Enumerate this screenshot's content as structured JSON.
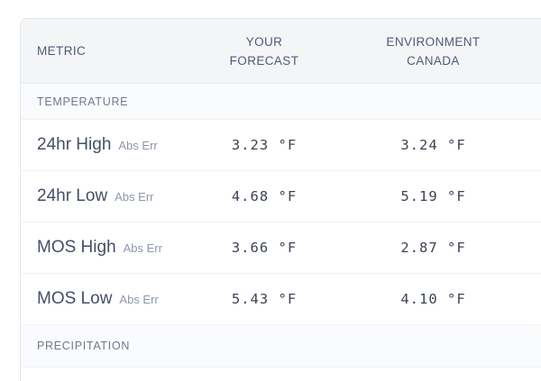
{
  "table": {
    "columns": [
      {
        "label": "METRIC"
      },
      {
        "label": "YOUR\nFORECAST"
      },
      {
        "label": "ENVIRONMENT\nCANADA"
      }
    ],
    "sections": [
      {
        "label": "TEMPERATURE",
        "rows": [
          {
            "metric": "24hr High",
            "qualifier": "Abs Err",
            "your_forecast": "3.23 °F",
            "environment_canada": "3.24 °F"
          },
          {
            "metric": "24hr Low",
            "qualifier": "Abs Err",
            "your_forecast": "4.68 °F",
            "environment_canada": "5.19 °F"
          },
          {
            "metric": "MOS High",
            "qualifier": "Abs Err",
            "your_forecast": "3.66 °F",
            "environment_canada": "2.87 °F"
          },
          {
            "metric": "MOS Low",
            "qualifier": "Abs Err",
            "your_forecast": "5.43 °F",
            "environment_canada": "4.10 °F"
          }
        ]
      },
      {
        "label": "PRECIPITATION",
        "rows": []
      }
    ]
  },
  "colors": {
    "header_background": "#f3f5f7",
    "section_background": "#fafbfd",
    "card_border": "#e3e6eb",
    "row_divider": "#eff1f5",
    "header_text": "#4f5b76",
    "section_text": "#6f7a8d",
    "metric_text": "#454f66",
    "qualifier_text": "#8d97ab",
    "value_text": "#3b4453"
  }
}
